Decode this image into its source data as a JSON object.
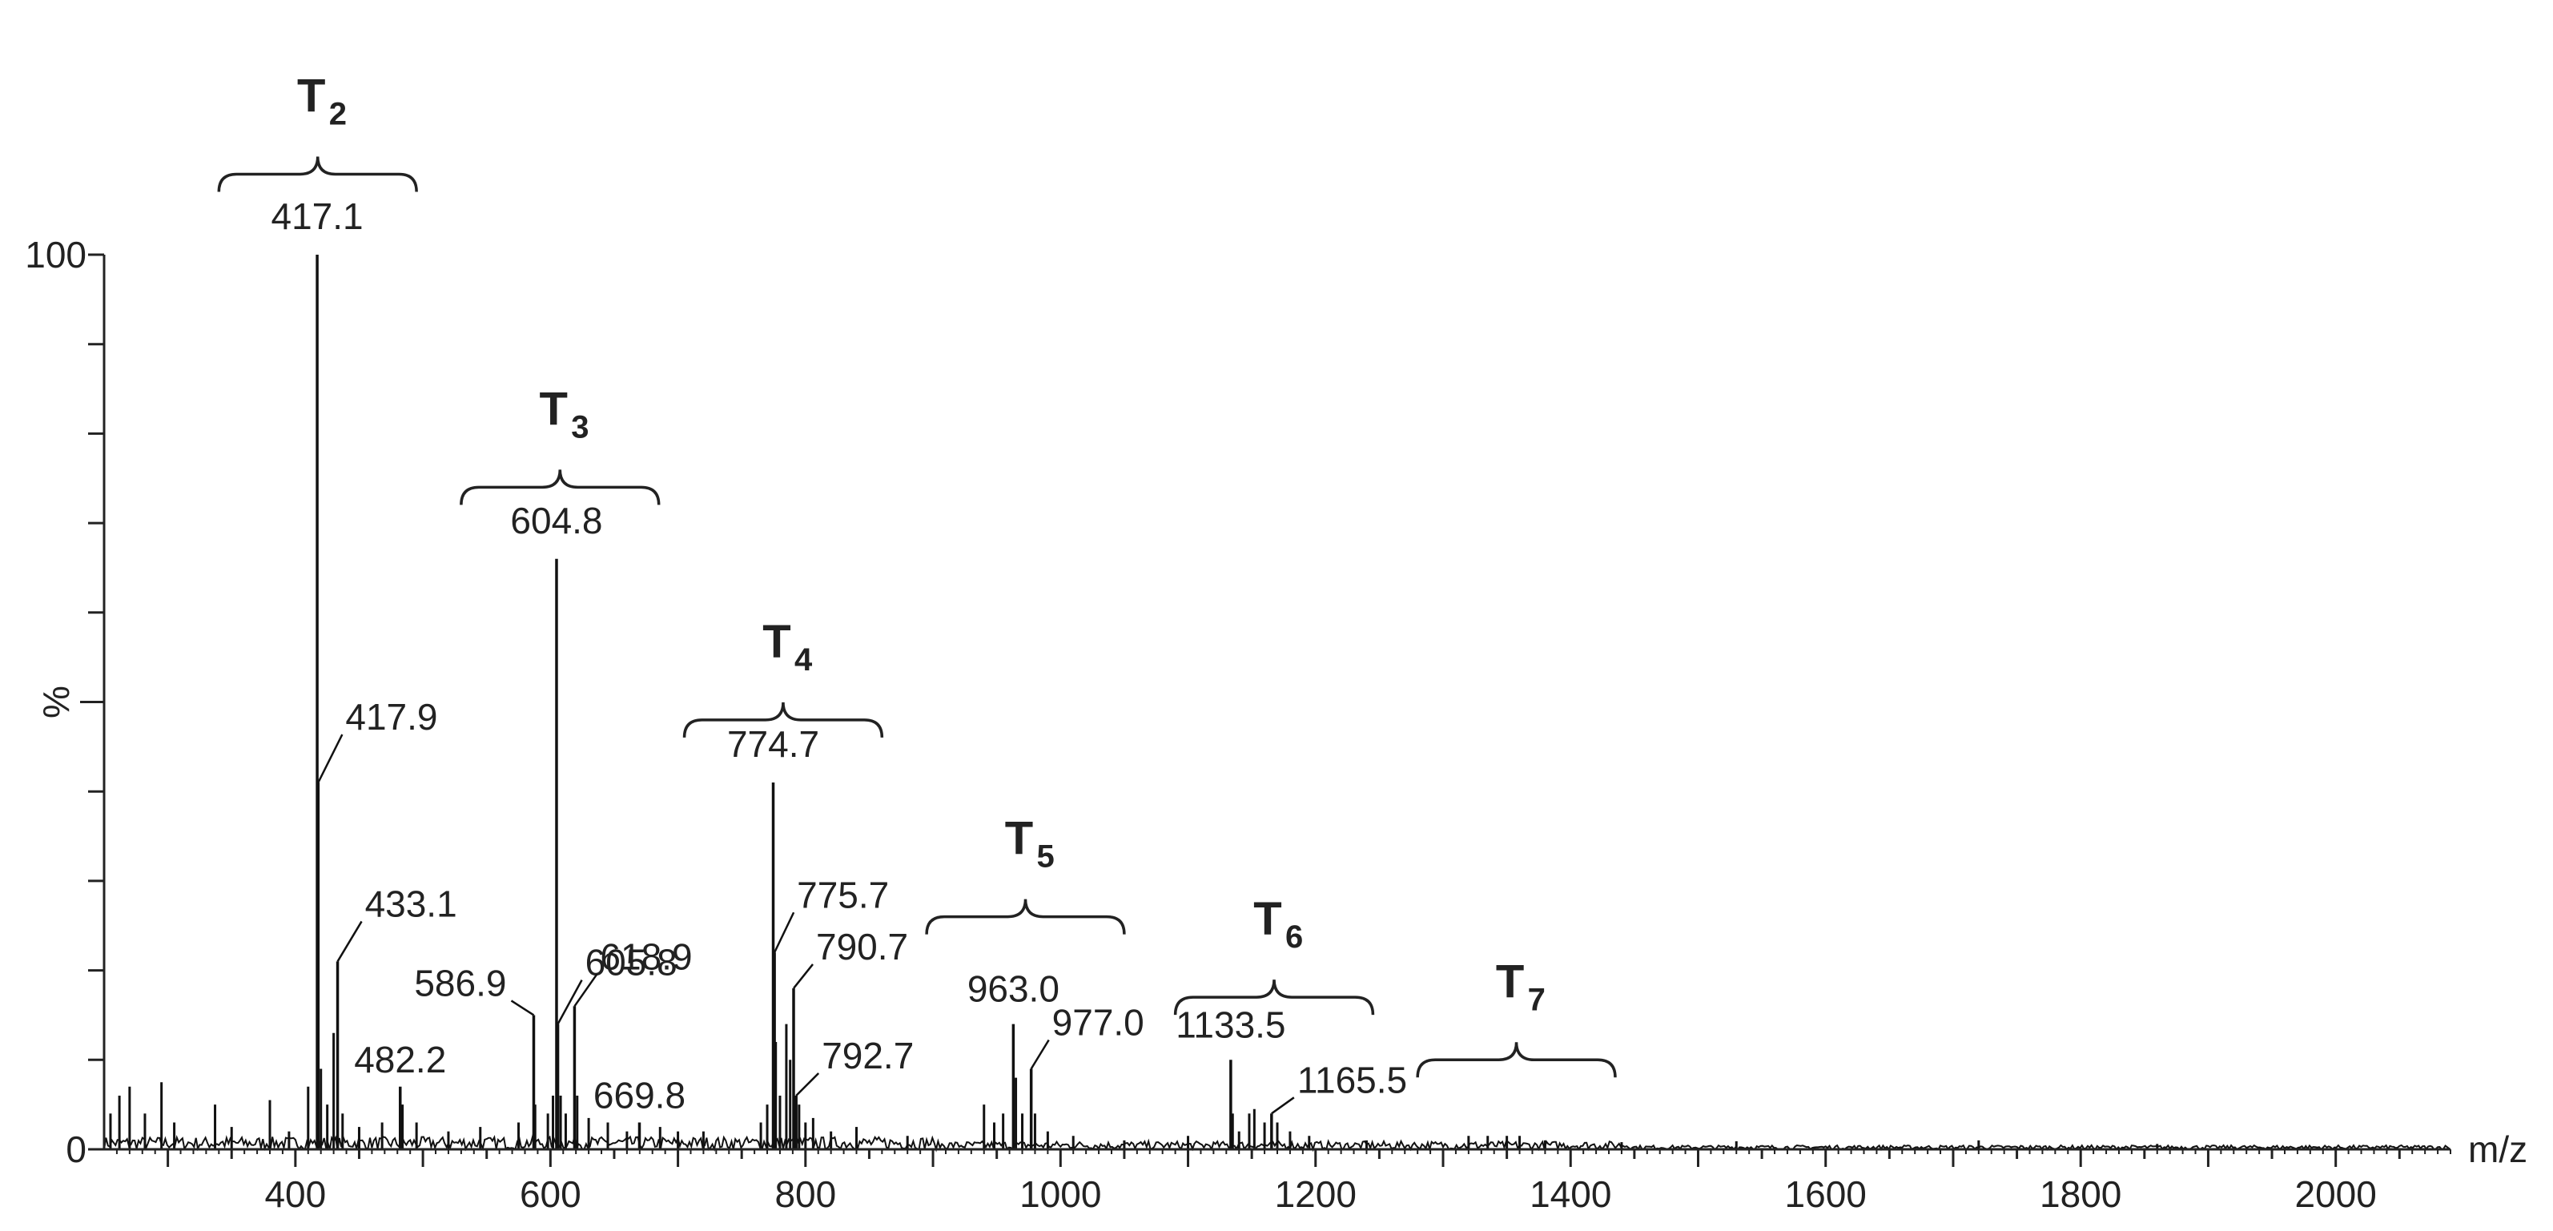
{
  "chart_data": {
    "type": "line",
    "xlabel": "m/z",
    "ylabel": "%",
    "xlim": [
      250,
      2090
    ],
    "ylim": [
      0,
      100
    ],
    "x_ticks": [
      "400",
      "600",
      "800",
      "1000",
      "1200",
      "1400",
      "1600",
      "1800",
      "2000"
    ],
    "y_ticks": [
      "0",
      "100"
    ],
    "peaks": [
      {
        "mz": 417.1,
        "intensity": 100,
        "label": "417.1"
      },
      {
        "mz": 417.9,
        "intensity": 41,
        "label": "417.9"
      },
      {
        "mz": 433.1,
        "intensity": 21,
        "label": "433.1"
      },
      {
        "mz": 482.2,
        "intensity": 7,
        "label": "482.2"
      },
      {
        "mz": 586.9,
        "intensity": 15,
        "label": "586.9"
      },
      {
        "mz": 604.8,
        "intensity": 66,
        "label": "604.8"
      },
      {
        "mz": 605.8,
        "intensity": 14,
        "label": "605.8"
      },
      {
        "mz": 618.9,
        "intensity": 16,
        "label": "618.9"
      },
      {
        "mz": 669.8,
        "intensity": 3,
        "label": "669.8"
      },
      {
        "mz": 774.7,
        "intensity": 41,
        "label": "774.7"
      },
      {
        "mz": 775.7,
        "intensity": 22,
        "label": "775.7"
      },
      {
        "mz": 790.7,
        "intensity": 18,
        "label": "790.7"
      },
      {
        "mz": 792.7,
        "intensity": 6,
        "label": "792.7"
      },
      {
        "mz": 963.0,
        "intensity": 14,
        "label": "963.0"
      },
      {
        "mz": 977.0,
        "intensity": 9,
        "label": "977.0"
      },
      {
        "mz": 1133.5,
        "intensity": 10,
        "label": "1133.5"
      },
      {
        "mz": 1165.5,
        "intensity": 4,
        "label": "1165.5"
      }
    ],
    "minor_peaks": [
      {
        "mz": 255,
        "intensity": 4
      },
      {
        "mz": 262,
        "intensity": 6
      },
      {
        "mz": 270,
        "intensity": 7
      },
      {
        "mz": 282,
        "intensity": 4
      },
      {
        "mz": 295,
        "intensity": 7.5
      },
      {
        "mz": 305,
        "intensity": 3
      },
      {
        "mz": 337,
        "intensity": 5
      },
      {
        "mz": 350,
        "intensity": 2.5
      },
      {
        "mz": 380,
        "intensity": 5.5
      },
      {
        "mz": 395,
        "intensity": 2
      },
      {
        "mz": 410,
        "intensity": 7
      },
      {
        "mz": 420,
        "intensity": 9
      },
      {
        "mz": 425,
        "intensity": 5
      },
      {
        "mz": 430,
        "intensity": 13
      },
      {
        "mz": 437,
        "intensity": 4
      },
      {
        "mz": 450,
        "intensity": 2.5
      },
      {
        "mz": 468,
        "intensity": 3
      },
      {
        "mz": 484,
        "intensity": 5
      },
      {
        "mz": 495,
        "intensity": 3
      },
      {
        "mz": 520,
        "intensity": 2
      },
      {
        "mz": 545,
        "intensity": 2.5
      },
      {
        "mz": 575,
        "intensity": 3
      },
      {
        "mz": 588,
        "intensity": 5
      },
      {
        "mz": 598,
        "intensity": 4
      },
      {
        "mz": 602,
        "intensity": 6
      },
      {
        "mz": 608,
        "intensity": 6
      },
      {
        "mz": 612,
        "intensity": 4
      },
      {
        "mz": 621,
        "intensity": 6
      },
      {
        "mz": 630,
        "intensity": 3.5
      },
      {
        "mz": 645,
        "intensity": 3
      },
      {
        "mz": 660,
        "intensity": 2
      },
      {
        "mz": 686,
        "intensity": 2.5
      },
      {
        "mz": 700,
        "intensity": 2
      },
      {
        "mz": 720,
        "intensity": 2
      },
      {
        "mz": 765,
        "intensity": 3
      },
      {
        "mz": 770,
        "intensity": 5
      },
      {
        "mz": 776.7,
        "intensity": 12
      },
      {
        "mz": 780,
        "intensity": 6
      },
      {
        "mz": 785,
        "intensity": 14
      },
      {
        "mz": 788,
        "intensity": 10
      },
      {
        "mz": 795,
        "intensity": 5
      },
      {
        "mz": 800,
        "intensity": 3
      },
      {
        "mz": 806,
        "intensity": 3.5
      },
      {
        "mz": 820,
        "intensity": 2
      },
      {
        "mz": 840,
        "intensity": 2.5
      },
      {
        "mz": 880,
        "intensity": 1.5
      },
      {
        "mz": 940,
        "intensity": 5
      },
      {
        "mz": 948,
        "intensity": 3
      },
      {
        "mz": 955,
        "intensity": 4
      },
      {
        "mz": 965,
        "intensity": 8
      },
      {
        "mz": 970,
        "intensity": 4
      },
      {
        "mz": 980,
        "intensity": 4
      },
      {
        "mz": 990,
        "intensity": 2
      },
      {
        "mz": 1010,
        "intensity": 1.5
      },
      {
        "mz": 1050,
        "intensity": 1
      },
      {
        "mz": 1100,
        "intensity": 1.5
      },
      {
        "mz": 1135,
        "intensity": 4
      },
      {
        "mz": 1140,
        "intensity": 2
      },
      {
        "mz": 1148,
        "intensity": 4
      },
      {
        "mz": 1152,
        "intensity": 4.5
      },
      {
        "mz": 1160,
        "intensity": 3
      },
      {
        "mz": 1170,
        "intensity": 3
      },
      {
        "mz": 1180,
        "intensity": 2
      },
      {
        "mz": 1195,
        "intensity": 1.5
      },
      {
        "mz": 1240,
        "intensity": 1
      },
      {
        "mz": 1320,
        "intensity": 1.5
      },
      {
        "mz": 1335,
        "intensity": 1.5
      },
      {
        "mz": 1350,
        "intensity": 1.5
      },
      {
        "mz": 1360,
        "intensity": 1.5
      },
      {
        "mz": 1380,
        "intensity": 1
      },
      {
        "mz": 1440,
        "intensity": 0.8
      },
      {
        "mz": 1530,
        "intensity": 0.9
      },
      {
        "mz": 1720,
        "intensity": 1
      },
      {
        "mz": 1860,
        "intensity": 0.6
      }
    ],
    "groups": [
      {
        "label": "T",
        "sub": "2",
        "mz_start": 340,
        "mz_end": 495,
        "level": 109
      },
      {
        "label": "T",
        "sub": "3",
        "mz_start": 530,
        "mz_end": 685,
        "level": 74
      },
      {
        "label": "T",
        "sub": "4",
        "mz_start": 705,
        "mz_end": 860,
        "level": 48
      },
      {
        "label": "T",
        "sub": "5",
        "mz_start": 895,
        "mz_end": 1050,
        "level": 26
      },
      {
        "label": "T",
        "sub": "6",
        "mz_start": 1090,
        "mz_end": 1245,
        "level": 17
      },
      {
        "label": "T",
        "sub": "7",
        "mz_start": 1280,
        "mz_end": 1435,
        "level": 10
      }
    ]
  }
}
